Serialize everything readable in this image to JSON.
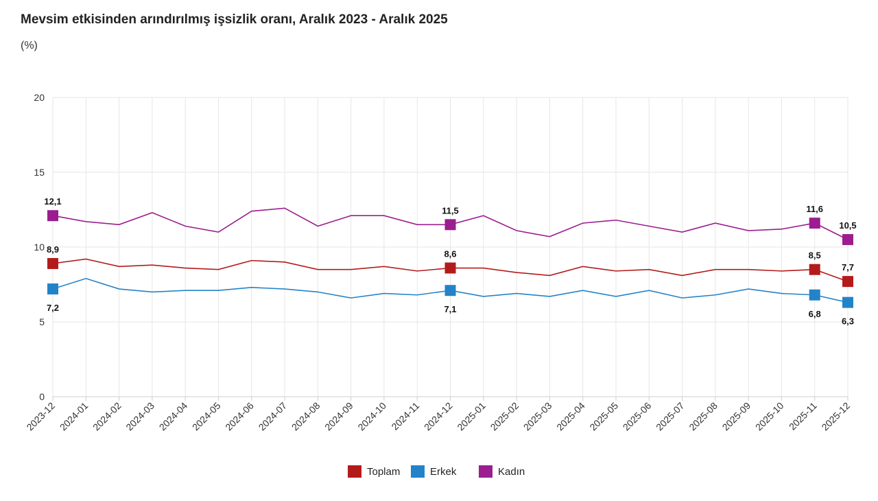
{
  "chart_data": {
    "type": "line",
    "title": "Mevsim etkisinden arındırılmış işsizlik oranı, Aralık 2023 - Aralık 2025",
    "ylabel": "(%)",
    "xlabel": "",
    "ylim": [
      0,
      20
    ],
    "yticks": [
      "0",
      "5",
      "10",
      "15",
      "20"
    ],
    "grid": true,
    "legend_position": "bottom",
    "categories": [
      "2023-12",
      "2024-01",
      "2024-02",
      "2024-03",
      "2024-04",
      "2024-05",
      "2024-06",
      "2024-07",
      "2024-08",
      "2024-09",
      "2024-10",
      "2024-11",
      "2024-12",
      "2025-01",
      "2025-02",
      "2025-03",
      "2025-04",
      "2025-05",
      "2025-06",
      "2025-07",
      "2025-08",
      "2025-09",
      "2025-10",
      "2025-11",
      "2025-12"
    ],
    "series": [
      {
        "name": "Toplam",
        "color": "#b31b1b",
        "values": [
          8.9,
          9.2,
          8.7,
          8.8,
          8.6,
          8.5,
          9.1,
          9.0,
          8.5,
          8.5,
          8.7,
          8.4,
          8.6,
          8.6,
          8.3,
          8.1,
          8.7,
          8.4,
          8.5,
          8.1,
          8.5,
          8.5,
          8.4,
          8.5,
          7.7
        ],
        "labels": {
          "0": "8,9",
          "12": "8,6",
          "23": "8,5",
          "24": "7,7"
        },
        "label_pos": "above"
      },
      {
        "name": "Erkek",
        "color": "#2383c8",
        "values": [
          7.2,
          7.9,
          7.2,
          7.0,
          7.1,
          7.1,
          7.3,
          7.2,
          7.0,
          6.6,
          6.9,
          6.8,
          7.1,
          6.7,
          6.9,
          6.7,
          7.1,
          6.7,
          7.1,
          6.6,
          6.8,
          7.2,
          6.9,
          6.8,
          6.3
        ],
        "labels": {
          "0": "7,2",
          "12": "7,1",
          "23": "6,8",
          "24": "6,3"
        },
        "label_pos": "below"
      },
      {
        "name": "Kadın",
        "color": "#9b1d8f",
        "values": [
          12.1,
          11.7,
          11.5,
          12.3,
          11.4,
          11.0,
          12.4,
          12.6,
          11.4,
          12.1,
          12.1,
          11.5,
          11.5,
          12.1,
          11.1,
          10.7,
          11.6,
          11.8,
          11.4,
          11.0,
          11.6,
          11.1,
          11.2,
          11.6,
          10.5
        ],
        "labels": {
          "0": "12,1",
          "12": "11,5",
          "23": "11,6",
          "24": "10,5"
        },
        "label_pos": "above"
      }
    ]
  }
}
